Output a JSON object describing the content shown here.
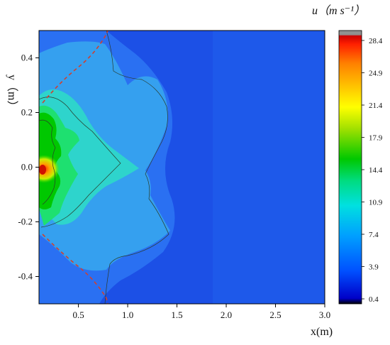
{
  "chart_data": {
    "type": "heatmap",
    "title": "",
    "xlabel": "x(m)",
    "ylabel": "y（m）",
    "colorbar_label": "u（m s⁻¹）",
    "xlim": [
      0.1,
      3.0
    ],
    "ylim": [
      -0.5,
      0.5
    ],
    "x_ticks": [
      0.5,
      1.0,
      1.5,
      2.0,
      2.5,
      3.0
    ],
    "x_tick_labels": [
      "0.5",
      "1.0",
      "1.5",
      "2.0",
      "2.5",
      "3.0"
    ],
    "y_ticks": [
      0.4,
      0.2,
      0.0,
      -0.2,
      -0.4
    ],
    "y_tick_labels": [
      "0.4",
      "0.2",
      "0.0",
      "-0.2",
      "-0.4"
    ],
    "colorbar_ticks": [
      28.4,
      24.9,
      21.4,
      17.9,
      14.4,
      10.9,
      7.4,
      3.9,
      0.4
    ],
    "colorbar_tick_labels": [
      "28.4",
      "24.9",
      "21.4",
      "17.9",
      "14.4",
      "10.9",
      "7.4",
      "3.9",
      "0.4"
    ],
    "colorbar_range": [
      0.4,
      28.4
    ],
    "jet_origin": [
      0.1,
      0.0
    ],
    "peak_value": 28.4,
    "isolines_m_s": [
      4.5,
      8.0,
      13.0
    ],
    "spread_boundary_color": "#d04030",
    "colormap": [
      "#000000",
      "#0000c8",
      "#0050ff",
      "#00a0ff",
      "#00e0e0",
      "#00dc80",
      "#00c800",
      "#a0e000",
      "#ffff00",
      "#ffc000",
      "#ff8000",
      "#ff2000",
      "#cc0000",
      "#808080"
    ]
  }
}
